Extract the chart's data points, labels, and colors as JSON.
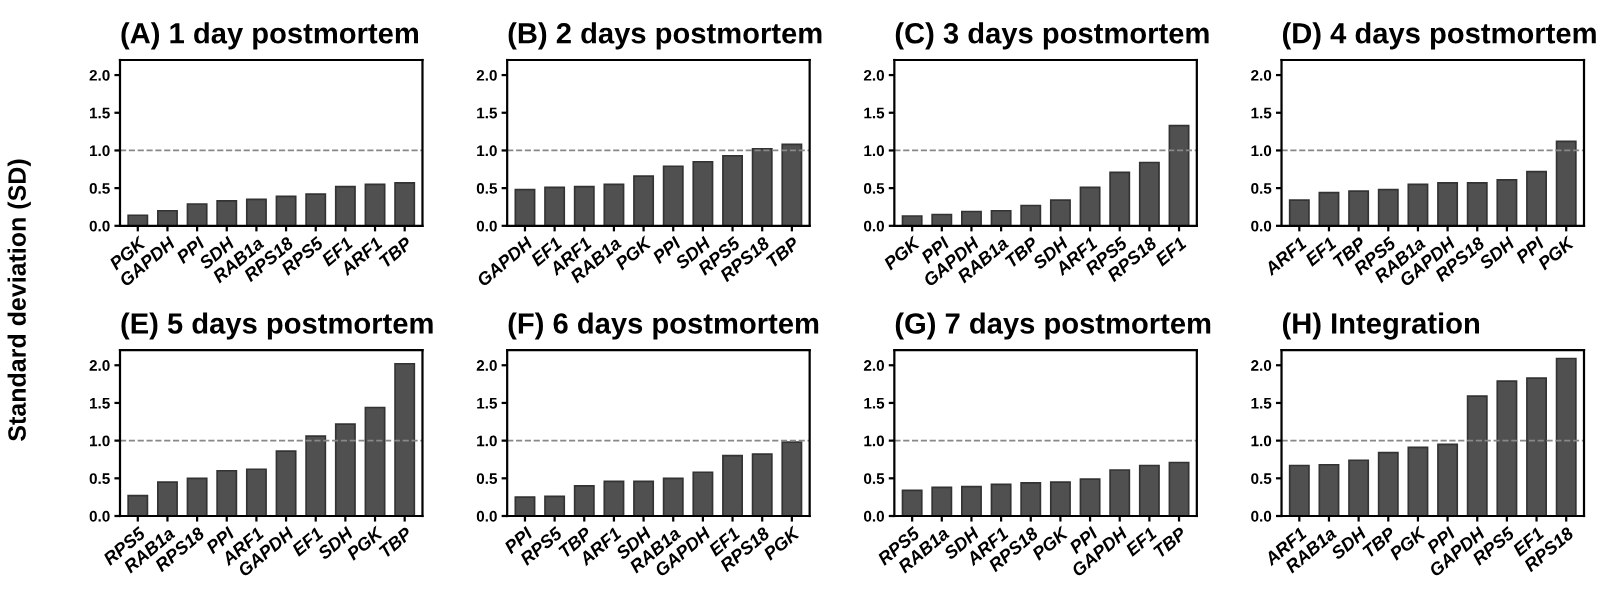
{
  "chart_data": [
    {
      "type": "bar",
      "title": "(A) 1 day postmortem",
      "ylabel": "Standard deviation (SD)",
      "categories": [
        "PGK",
        "GAPDH",
        "PPI",
        "SDH",
        "RAB1a",
        "RPS18",
        "RPS5",
        "EF1",
        "ARF1",
        "TBP"
      ],
      "values": [
        0.14,
        0.2,
        0.29,
        0.33,
        0.35,
        0.39,
        0.42,
        0.52,
        0.55,
        0.57
      ],
      "color": "#505050",
      "ylim": [
        0,
        2.2
      ],
      "yticks": [
        {
          "value": 0,
          "label": "0.0"
        },
        {
          "value": 0.5,
          "label": "0.5"
        },
        {
          "value": 1,
          "label": "1.0"
        },
        {
          "value": 1.5,
          "label": "1.5"
        },
        {
          "value": 2,
          "label": "2.0"
        }
      ],
      "ref_lines": [
        {
          "axis": "y",
          "value": 1,
          "line_style": "dashed",
          "color": "#888888"
        }
      ],
      "grid": false
    },
    {
      "type": "bar",
      "title": "(B) 2 days postmortem",
      "categories": [
        "GAPDH",
        "EF1",
        "ARF1",
        "RAB1a",
        "PGK",
        "PPI",
        "SDH",
        "RPS5",
        "RPS18",
        "TBP"
      ],
      "values": [
        0.48,
        0.51,
        0.52,
        0.55,
        0.66,
        0.79,
        0.85,
        0.93,
        1.02,
        1.08
      ],
      "color": "#505050",
      "ylim": [
        0,
        2.2
      ],
      "yticks": [
        {
          "value": 0,
          "label": "0.0"
        },
        {
          "value": 0.5,
          "label": "0.5"
        },
        {
          "value": 1,
          "label": "1.0"
        },
        {
          "value": 1.5,
          "label": "1.5"
        },
        {
          "value": 2,
          "label": "2.0"
        }
      ],
      "ref_lines": [
        {
          "axis": "y",
          "value": 1,
          "line_style": "dashed",
          "color": "#888888"
        }
      ],
      "grid": false
    },
    {
      "type": "bar",
      "title": "(C) 3 days postmortem",
      "categories": [
        "PGK",
        "PPI",
        "GAPDH",
        "RAB1a",
        "TBP",
        "SDH",
        "ARF1",
        "RPS5",
        "RPS18",
        "EF1"
      ],
      "values": [
        0.13,
        0.15,
        0.19,
        0.2,
        0.27,
        0.34,
        0.51,
        0.71,
        0.84,
        1.33
      ],
      "color": "#505050",
      "ylim": [
        0,
        2.2
      ],
      "yticks": [
        {
          "value": 0,
          "label": "0.0"
        },
        {
          "value": 0.5,
          "label": "0.5"
        },
        {
          "value": 1,
          "label": "1.0"
        },
        {
          "value": 1.5,
          "label": "1.5"
        },
        {
          "value": 2,
          "label": "2.0"
        }
      ],
      "ref_lines": [
        {
          "axis": "y",
          "value": 1,
          "line_style": "dashed",
          "color": "#888888"
        }
      ],
      "grid": false
    },
    {
      "type": "bar",
      "title": "(D) 4 days postmortem",
      "categories": [
        "ARF1",
        "EF1",
        "TBP",
        "RPS5",
        "RAB1a",
        "GAPDH",
        "RPS18",
        "SDH",
        "PPI",
        "PGK"
      ],
      "values": [
        0.34,
        0.44,
        0.46,
        0.48,
        0.55,
        0.57,
        0.57,
        0.61,
        0.72,
        1.12
      ],
      "color": "#505050",
      "ylim": [
        0,
        2.2
      ],
      "yticks": [
        {
          "value": 0,
          "label": "0.0"
        },
        {
          "value": 0.5,
          "label": "0.5"
        },
        {
          "value": 1,
          "label": "1.0"
        },
        {
          "value": 1.5,
          "label": "1.5"
        },
        {
          "value": 2,
          "label": "2.0"
        }
      ],
      "ref_lines": [
        {
          "axis": "y",
          "value": 1,
          "line_style": "dashed",
          "color": "#888888"
        }
      ],
      "grid": false
    },
    {
      "type": "bar",
      "title": "(E) 5 days postmortem",
      "categories": [
        "RPS5",
        "RAB1a",
        "RPS18",
        "PPI",
        "ARF1",
        "GAPDH",
        "EF1",
        "SDH",
        "PGK",
        "TBP"
      ],
      "values": [
        0.27,
        0.45,
        0.5,
        0.6,
        0.62,
        0.86,
        1.06,
        1.22,
        1.44,
        2.02
      ],
      "color": "#505050",
      "ylim": [
        0,
        2.2
      ],
      "yticks": [
        {
          "value": 0,
          "label": "0.0"
        },
        {
          "value": 0.5,
          "label": "0.5"
        },
        {
          "value": 1,
          "label": "1.0"
        },
        {
          "value": 1.5,
          "label": "1.5"
        },
        {
          "value": 2,
          "label": "2.0"
        }
      ],
      "ref_lines": [
        {
          "axis": "y",
          "value": 1,
          "line_style": "dashed",
          "color": "#888888"
        }
      ],
      "grid": false
    },
    {
      "type": "bar",
      "title": "(F) 6 days postmortem",
      "categories": [
        "PPI",
        "RPS5",
        "TBP",
        "ARF1",
        "SDH",
        "RAB1a",
        "GAPDH",
        "EF1",
        "RPS18",
        "PGK"
      ],
      "values": [
        0.25,
        0.26,
        0.4,
        0.46,
        0.46,
        0.5,
        0.58,
        0.8,
        0.82,
        0.98
      ],
      "color": "#505050",
      "ylim": [
        0,
        2.2
      ],
      "yticks": [
        {
          "value": 0,
          "label": "0.0"
        },
        {
          "value": 0.5,
          "label": "0.5"
        },
        {
          "value": 1,
          "label": "1.0"
        },
        {
          "value": 1.5,
          "label": "1.5"
        },
        {
          "value": 2,
          "label": "2.0"
        }
      ],
      "ref_lines": [
        {
          "axis": "y",
          "value": 1,
          "line_style": "dashed",
          "color": "#888888"
        }
      ],
      "grid": false
    },
    {
      "type": "bar",
      "title": "(G) 7 days postmortem",
      "categories": [
        "RPS5",
        "RAB1a",
        "SDH",
        "ARF1",
        "RPS18",
        "PGK",
        "PPI",
        "GAPDH",
        "EF1",
        "TBP"
      ],
      "values": [
        0.34,
        0.38,
        0.39,
        0.42,
        0.44,
        0.45,
        0.49,
        0.61,
        0.67,
        0.71
      ],
      "color": "#505050",
      "ylim": [
        0,
        2.2
      ],
      "yticks": [
        {
          "value": 0,
          "label": "0.0"
        },
        {
          "value": 0.5,
          "label": "0.5"
        },
        {
          "value": 1,
          "label": "1.0"
        },
        {
          "value": 1.5,
          "label": "1.5"
        },
        {
          "value": 2,
          "label": "2.0"
        }
      ],
      "ref_lines": [
        {
          "axis": "y",
          "value": 1,
          "line_style": "dashed",
          "color": "#888888"
        }
      ],
      "grid": false
    },
    {
      "type": "bar",
      "title": "(H) Integration",
      "categories": [
        "ARF1",
        "RAB1a",
        "SDH",
        "TBP",
        "PGK",
        "PPI",
        "GAPDH",
        "RPS5",
        "EF1",
        "RPS18"
      ],
      "values": [
        0.67,
        0.68,
        0.74,
        0.84,
        0.91,
        0.95,
        1.59,
        1.79,
        1.83,
        2.09
      ],
      "color": "#505050",
      "ylim": [
        0,
        2.2
      ],
      "yticks": [
        {
          "value": 0,
          "label": "0.0"
        },
        {
          "value": 0.5,
          "label": "0.5"
        },
        {
          "value": 1,
          "label": "1.0"
        },
        {
          "value": 1.5,
          "label": "1.5"
        },
        {
          "value": 2,
          "label": "2.0"
        }
      ],
      "ref_lines": [
        {
          "axis": "y",
          "value": 1,
          "line_style": "dashed",
          "color": "#888888"
        }
      ],
      "grid": false
    }
  ]
}
